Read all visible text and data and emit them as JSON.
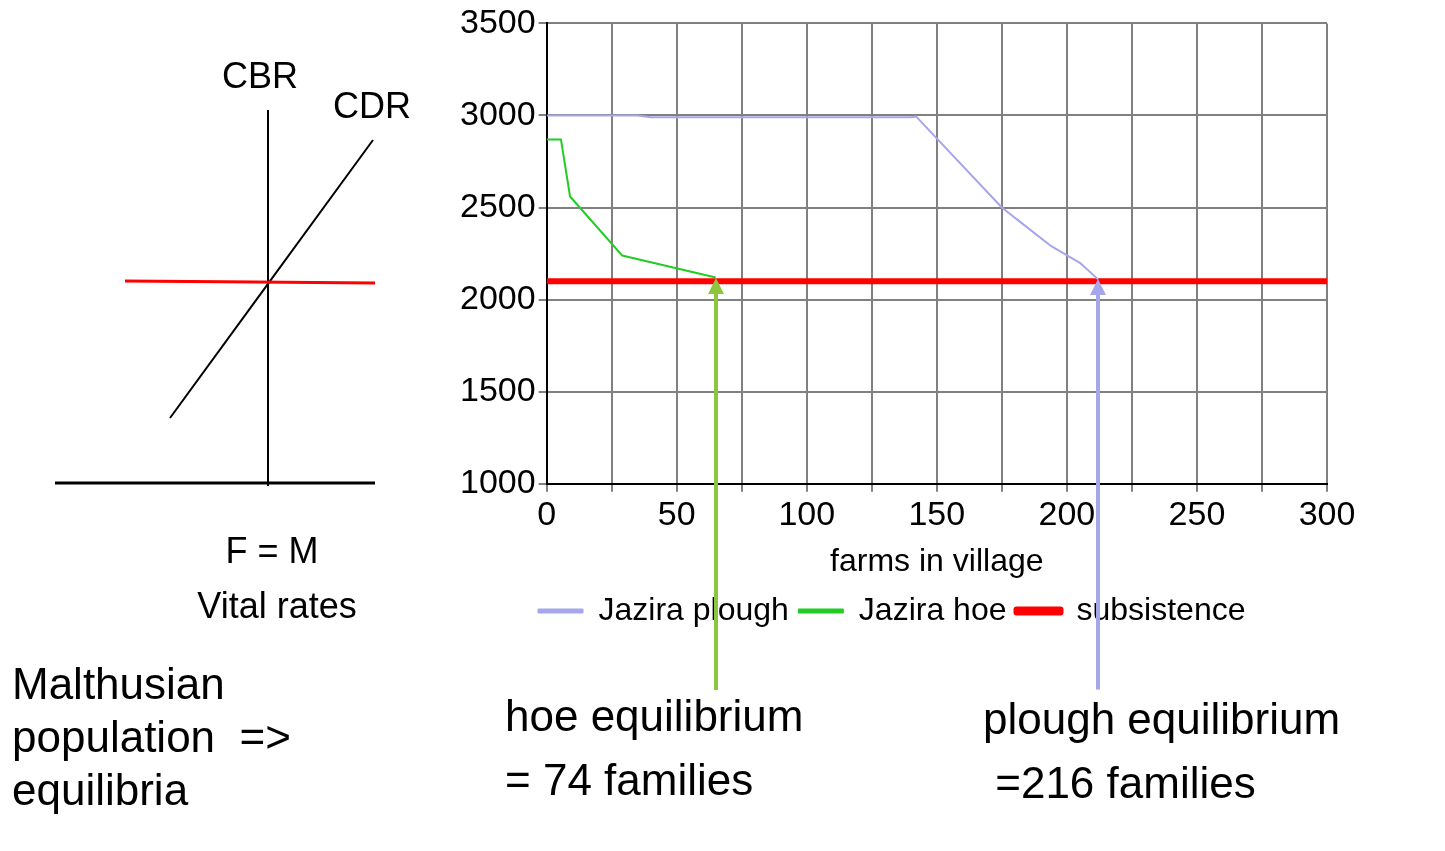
{
  "chart_data": {
    "type": "line",
    "xlabel": "farms in village",
    "xlim": [
      0,
      300
    ],
    "xticks": [
      0,
      {
        "value": 25,
        "label": null
      },
      50,
      {
        "value": 75,
        "label": null
      },
      100,
      {
        "value": 125,
        "label": null
      },
      150,
      {
        "value": 175,
        "label": null
      },
      200,
      {
        "value": 225,
        "label": null
      },
      250,
      {
        "value": 275,
        "label": null
      },
      300
    ],
    "ylim": [
      1000,
      3500
    ],
    "yticks": [
      1000,
      1500,
      2000,
      2500,
      3000,
      3500
    ],
    "grid": true,
    "legend": "bottom",
    "marker": "none",
    "line_style": "solid",
    "series": [
      {
        "name": "Jazira plough",
        "color": "#a6a6ea",
        "x": [
          0,
          35,
          40,
          140,
          142,
          175,
          194,
          205,
          212
        ],
        "values": [
          3000,
          3000,
          2990,
          2990,
          2995,
          2500,
          2290,
          2200,
          2110
        ]
      },
      {
        "name": "Jazira hoe",
        "color": "#22cc22",
        "x": [
          0,
          5.5,
          9,
          29,
          65
        ],
        "values": [
          2870,
          2870,
          2560,
          2240,
          2120
        ]
      },
      {
        "name": "subsistence",
        "color": "#ff0000",
        "x": [
          0,
          300
        ],
        "values": [
          2100,
          2100
        ]
      }
    ],
    "annotations": [
      "hoe equilibrium\n= 74 families",
      "plough equilibrium\n =216 families",
      "CBR",
      "CDR",
      "F = M",
      "Vital rates",
      "Malthusian\npopulation  =>\nequilibria"
    ]
  }
}
